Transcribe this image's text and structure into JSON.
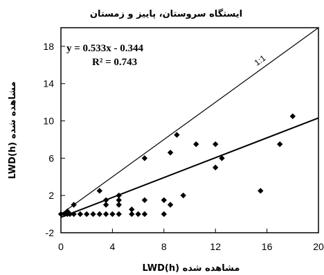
{
  "chart_data": {
    "type": "scatter",
    "title": "ایستگاه سروستان، پاییز و زمستان",
    "xlabel": "LWD(h) مشاهده شده",
    "ylabel": "LWD(h) مشاهده شده",
    "xlim": [
      0,
      20
    ],
    "ylim": [
      -2,
      20
    ],
    "xticks": [
      "0",
      "4",
      "8",
      "12",
      "16",
      "20"
    ],
    "yticks": [
      "-2",
      "2",
      "6",
      "10",
      "14",
      "18"
    ],
    "xtick_values": [
      0,
      4,
      8,
      12,
      16,
      20
    ],
    "ytick_values": [
      -2,
      2,
      6,
      10,
      14,
      18
    ],
    "grid": false,
    "equation": "y = 0.533x - 0.344",
    "r_squared": "R² = 0.743",
    "reference_line_label": "1:1",
    "trendline": {
      "slope": 0.533,
      "intercept": -0.344
    },
    "points": [
      {
        "x": 0,
        "y": 0
      },
      {
        "x": 0.3,
        "y": 0
      },
      {
        "x": 0.5,
        "y": 0
      },
      {
        "x": 0.7,
        "y": 0
      },
      {
        "x": 1,
        "y": 0
      },
      {
        "x": 1.5,
        "y": 0
      },
      {
        "x": 2,
        "y": 0
      },
      {
        "x": 2.5,
        "y": 0
      },
      {
        "x": 3,
        "y": 0
      },
      {
        "x": 3.5,
        "y": 0
      },
      {
        "x": 4,
        "y": 0
      },
      {
        "x": 4.5,
        "y": 0
      },
      {
        "x": 5.5,
        "y": 0
      },
      {
        "x": 6,
        "y": 0
      },
      {
        "x": 6.5,
        "y": 0
      },
      {
        "x": 8,
        "y": 0
      },
      {
        "x": 0.5,
        "y": 0.3
      },
      {
        "x": 1,
        "y": 1
      },
      {
        "x": 3,
        "y": 2.5
      },
      {
        "x": 3.5,
        "y": 1
      },
      {
        "x": 3.5,
        "y": 1.5
      },
      {
        "x": 4.5,
        "y": 1
      },
      {
        "x": 4.5,
        "y": 1.5
      },
      {
        "x": 4.5,
        "y": 2
      },
      {
        "x": 5.5,
        "y": 0.5
      },
      {
        "x": 6.5,
        "y": 1.5
      },
      {
        "x": 6.5,
        "y": 6
      },
      {
        "x": 8,
        "y": 1.5
      },
      {
        "x": 8.5,
        "y": 1
      },
      {
        "x": 8.5,
        "y": 6.6
      },
      {
        "x": 9,
        "y": 8.5
      },
      {
        "x": 9.5,
        "y": 2
      },
      {
        "x": 10.5,
        "y": 7.5
      },
      {
        "x": 12,
        "y": 5
      },
      {
        "x": 12,
        "y": 7.5
      },
      {
        "x": 12.5,
        "y": 6
      },
      {
        "x": 15.5,
        "y": 2.5
      },
      {
        "x": 17,
        "y": 7.5
      },
      {
        "x": 18,
        "y": 10.5
      }
    ]
  }
}
